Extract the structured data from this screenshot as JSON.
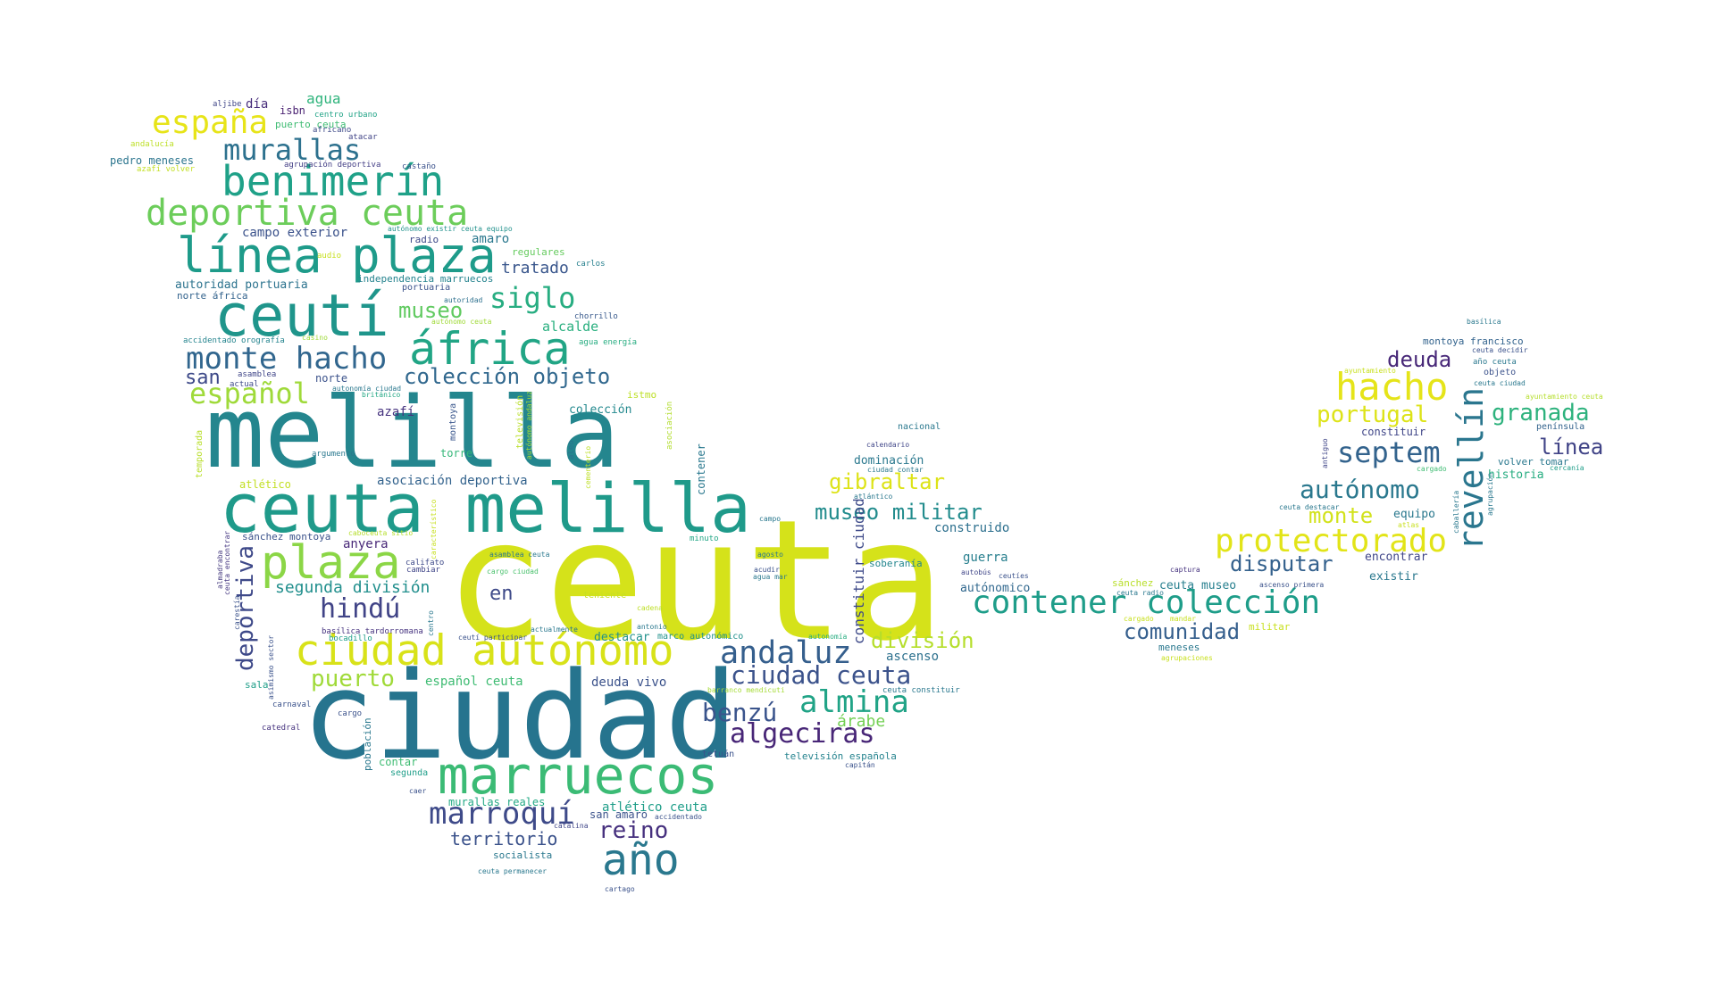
{
  "words": [
    {
      "text": "ceuta",
      "color": "#d5e21a"
    },
    {
      "text": "ciudad",
      "color": "#26748e"
    },
    {
      "text": "melilla",
      "color": "#24868e"
    },
    {
      "text": "ceuta melilla",
      "color": "#1f9a8a"
    },
    {
      "text": "marruecos",
      "color": "#3bbb75"
    },
    {
      "text": "ciudad autónomo",
      "color": "#d8e219"
    },
    {
      "text": "ceutí",
      "color": "#1f958b"
    },
    {
      "text": "línea plaza",
      "color": "#1e9b8a"
    },
    {
      "text": "áfrica",
      "color": "#21a585"
    },
    {
      "text": "plaza",
      "color": "#8bd646"
    },
    {
      "text": "año",
      "color": "#2a788e"
    },
    {
      "text": "benimerín",
      "color": "#1fa188"
    },
    {
      "text": "deportiva ceuta",
      "color": "#6ccd5a"
    },
    {
      "text": "contener colección",
      "color": "#1e9d89"
    },
    {
      "text": "revellín",
      "color": "#2a768e"
    },
    {
      "text": "hacho",
      "color": "#e5e419"
    },
    {
      "text": "protectorado",
      "color": "#e2e418"
    },
    {
      "text": "monte hacho",
      "color": "#31668e"
    },
    {
      "text": "españa",
      "color": "#e7e419"
    },
    {
      "text": "murallas",
      "color": "#2d718e"
    },
    {
      "text": "marroquí",
      "color": "#3e4a89"
    },
    {
      "text": "almina",
      "color": "#20a386"
    },
    {
      "text": "andaluz",
      "color": "#355f8d"
    },
    {
      "text": "hindú",
      "color": "#414487"
    },
    {
      "text": "español",
      "color": "#9fda3a"
    },
    {
      "text": "siglo",
      "color": "#27ad81"
    },
    {
      "text": "septem",
      "color": "#33638d"
    },
    {
      "text": "ciudad ceuta",
      "color": "#3b528b"
    },
    {
      "text": "algeciras",
      "color": "#482677"
    },
    {
      "text": "autónomo",
      "color": "#2a788e"
    },
    {
      "text": "deportiva",
      "color": "#3e4989"
    },
    {
      "text": "benzú",
      "color": "#3a548c"
    },
    {
      "text": "división",
      "color": "#b5de2b"
    },
    {
      "text": "colección objeto",
      "color": "#31688e"
    },
    {
      "text": "museo militar",
      "color": "#228c8d"
    },
    {
      "text": "portugal",
      "color": "#dde318"
    },
    {
      "text": "granada",
      "color": "#2db27d"
    },
    {
      "text": "gibraltar",
      "color": "#dde318"
    },
    {
      "text": "comunidad",
      "color": "#355f8d"
    },
    {
      "text": "puerto",
      "color": "#a0da39"
    },
    {
      "text": "reino",
      "color": "#46307e"
    },
    {
      "text": "monte",
      "color": "#d2e21b"
    },
    {
      "text": "disputar",
      "color": "#34618d"
    },
    {
      "text": "deuda",
      "color": "#482878"
    },
    {
      "text": "línea",
      "color": "#414487"
    },
    {
      "text": "museo",
      "color": "#60ca60"
    },
    {
      "text": "territorio",
      "color": "#3b528b"
    },
    {
      "text": "en",
      "color": "#3e4a89"
    },
    {
      "text": "san",
      "color": "#3e4a89"
    },
    {
      "text": "segunda división",
      "color": "#218f8d"
    },
    {
      "text": "árabe",
      "color": "#74d055"
    },
    {
      "text": "tratado",
      "color": "#39568c"
    },
    {
      "text": "constituir ciudad",
      "color": "#3e4a89"
    },
    {
      "text": "agua",
      "color": "#2fb47c"
    },
    {
      "text": "día",
      "color": "#472d7b"
    },
    {
      "text": "isbn",
      "color": "#481f70"
    },
    {
      "text": "centro urbano",
      "color": "#20a386"
    },
    {
      "text": "aljibe",
      "color": "#404688"
    },
    {
      "text": "puerto ceuta",
      "color": "#3fbc73"
    },
    {
      "text": "africano",
      "color": "#3e4a89"
    },
    {
      "text": "atacar",
      "color": "#414487"
    },
    {
      "text": "andalucía",
      "color": "#bddf26"
    },
    {
      "text": "pedro meneses",
      "color": "#2b758e"
    },
    {
      "text": "agrupación deportiva",
      "color": "#433e85"
    },
    {
      "text": "castaño",
      "color": "#3b528b"
    },
    {
      "text": "azafí volver",
      "color": "#c2df23"
    },
    {
      "text": "campo exterior",
      "color": "#3b528b"
    },
    {
      "text": "autónomo existir ceuta equipo",
      "color": "#21918c"
    },
    {
      "text": "amaro",
      "color": "#2a788e"
    },
    {
      "text": "radio",
      "color": "#3e4a89"
    },
    {
      "text": "regulares",
      "color": "#65cb5e"
    },
    {
      "text": "audio",
      "color": "#c8e020"
    },
    {
      "text": "carlos",
      "color": "#27808e"
    },
    {
      "text": "independencia marruecos",
      "color": "#25838e"
    },
    {
      "text": "autoridad portuaria",
      "color": "#2c738e"
    },
    {
      "text": "norte áfrica",
      "color": "#33638d"
    },
    {
      "text": "portuaria",
      "color": "#3b528b"
    },
    {
      "text": "autoridad",
      "color": "#2d708e"
    },
    {
      "text": "autónomo ceuta",
      "color": "#a0da39"
    },
    {
      "text": "chorrillo",
      "color": "#38598c"
    },
    {
      "text": "alcalde",
      "color": "#29af7f"
    },
    {
      "text": "casino",
      "color": "#9fda3a"
    },
    {
      "text": "accidentado orografía",
      "color": "#25848e"
    },
    {
      "text": "agua energía",
      "color": "#27ad81"
    },
    {
      "text": "asamblea",
      "color": "#404688"
    },
    {
      "text": "actual",
      "color": "#3e4a89"
    },
    {
      "text": "norte",
      "color": "#3b528b"
    },
    {
      "text": "autonomía ciudad",
      "color": "#2a788e"
    },
    {
      "text": "británico",
      "color": "#22a884"
    },
    {
      "text": "istmo",
      "color": "#bddf26"
    },
    {
      "text": "azafí",
      "color": "#46337f"
    },
    {
      "text": "montoya",
      "color": "#39568c"
    },
    {
      "text": "colección",
      "color": "#23898e"
    },
    {
      "text": "televisión",
      "color": "#b8de29"
    },
    {
      "text": "autónomo andaluz",
      "color": "#a5db36"
    },
    {
      "text": "argumento",
      "color": "#2a788e"
    },
    {
      "text": "torre",
      "color": "#35b779"
    },
    {
      "text": "aleo",
      "color": "#2c728e"
    },
    {
      "text": "asociación",
      "color": "#b2dd2d"
    },
    {
      "text": "cementerio",
      "color": "#bddf26"
    },
    {
      "text": "contener",
      "color": "#2a788e"
    },
    {
      "text": "temporada",
      "color": "#b8de29"
    },
    {
      "text": "atlético",
      "color": "#c2df23"
    },
    {
      "text": "asociación deportiva",
      "color": "#33638d"
    },
    {
      "text": "caboceuta sitio",
      "color": "#b5de2b"
    },
    {
      "text": "característico",
      "color": "#c8e020"
    },
    {
      "text": "sánchez montoya",
      "color": "#3b528b"
    },
    {
      "text": "anyera",
      "color": "#482878"
    },
    {
      "text": "almadraba",
      "color": "#44397f"
    },
    {
      "text": "ceuta encontrar",
      "color": "#453781"
    },
    {
      "text": "califato",
      "color": "#3e4a89"
    },
    {
      "text": "cambiar",
      "color": "#404688"
    },
    {
      "text": "asamblea ceuta",
      "color": "#2a788e"
    },
    {
      "text": "cargo ciudad",
      "color": "#4ac16d"
    },
    {
      "text": "minuto",
      "color": "#21a685"
    },
    {
      "text": "agosto",
      "color": "#2a788e"
    },
    {
      "text": "acudir",
      "color": "#3b528b"
    },
    {
      "text": "agua mar",
      "color": "#2a788e"
    },
    {
      "text": "campo",
      "color": "#2a788e"
    },
    {
      "text": "construido",
      "color": "#2d708e"
    },
    {
      "text": "guerra",
      "color": "#277f8e"
    },
    {
      "text": "soberanía",
      "color": "#24868e"
    },
    {
      "text": "autónomico",
      "color": "#31688e"
    },
    {
      "text": "autobús",
      "color": "#404688"
    },
    {
      "text": "ceutíes",
      "color": "#3b528b"
    },
    {
      "text": "ascenso",
      "color": "#2d718e"
    },
    {
      "text": "nacional",
      "color": "#2a788e"
    },
    {
      "text": "calendario",
      "color": "#404688"
    },
    {
      "text": "dominación",
      "color": "#2a788e"
    },
    {
      "text": "ciudad contar",
      "color": "#2a788e"
    },
    {
      "text": "atlántico",
      "color": "#2a788e"
    },
    {
      "text": "teniente",
      "color": "#c8e020"
    },
    {
      "text": "cadena",
      "color": "#bddf26"
    },
    {
      "text": "antonio",
      "color": "#2a788e"
    },
    {
      "text": "carestía",
      "color": "#3b528b"
    },
    {
      "text": "basílica tardorromana",
      "color": "#46337f"
    },
    {
      "text": "bocadillo",
      "color": "#1f9e89"
    },
    {
      "text": "centro",
      "color": "#2a788e"
    },
    {
      "text": "ceutí participar",
      "color": "#3b528b"
    },
    {
      "text": "actualmente",
      "color": "#2a788e"
    },
    {
      "text": "destacar",
      "color": "#21918c"
    },
    {
      "text": "marco autonómico",
      "color": "#21918c"
    },
    {
      "text": "autonomía",
      "color": "#27ad81"
    },
    {
      "text": "asimismo sector",
      "color": "#3b528b"
    },
    {
      "text": "sala",
      "color": "#1f9e89"
    },
    {
      "text": "español ceuta",
      "color": "#3fbc73"
    },
    {
      "text": "deuda vivo",
      "color": "#3b528b"
    },
    {
      "text": "barranco mendicuti",
      "color": "#a5db36"
    },
    {
      "text": "ceuta constituir",
      "color": "#2a788e"
    },
    {
      "text": "carnaval",
      "color": "#3b528b"
    },
    {
      "text": "cargo",
      "color": "#3b528b"
    },
    {
      "text": "catedral",
      "color": "#46337f"
    },
    {
      "text": "población",
      "color": "#2a788e"
    },
    {
      "text": "contar",
      "color": "#3fbc73"
    },
    {
      "text": "segunda",
      "color": "#1f9e89"
    },
    {
      "text": "tetuán",
      "color": "#3b528b"
    },
    {
      "text": "televisión española",
      "color": "#25838e"
    },
    {
      "text": "capitán",
      "color": "#3b528b"
    },
    {
      "text": "caer",
      "color": "#3b528b"
    },
    {
      "text": "murallas reales",
      "color": "#22a884"
    },
    {
      "text": "atlético ceuta",
      "color": "#1f9e89"
    },
    {
      "text": "san amaro",
      "color": "#3b528b"
    },
    {
      "text": "accidentado",
      "color": "#3b528b"
    },
    {
      "text": "catalina",
      "color": "#404688"
    },
    {
      "text": "socialista",
      "color": "#2a788e"
    },
    {
      "text": "ceuta permanecer",
      "color": "#2a788e"
    },
    {
      "text": "cartago",
      "color": "#3b528b"
    },
    {
      "text": "sánchez",
      "color": "#b8de29"
    },
    {
      "text": "ceuta radio",
      "color": "#2a788e"
    },
    {
      "text": "ceuta museo",
      "color": "#277f8e"
    },
    {
      "text": "ascenso primera",
      "color": "#3b528b"
    },
    {
      "text": "cargado",
      "color": "#c8e020"
    },
    {
      "text": "mandar",
      "color": "#c8e020"
    },
    {
      "text": "militar",
      "color": "#c8e020"
    },
    {
      "text": "meneses",
      "color": "#2a788e"
    },
    {
      "text": "agrupaciones",
      "color": "#c8e020"
    },
    {
      "text": "captura",
      "color": "#46337f"
    },
    {
      "text": "encontrar",
      "color": "#404688"
    },
    {
      "text": "existir",
      "color": "#2a788e"
    },
    {
      "text": "equipo",
      "color": "#2a788e"
    },
    {
      "text": "constituir",
      "color": "#404688"
    },
    {
      "text": "ceuta destacar",
      "color": "#2a788e"
    },
    {
      "text": "antiguo",
      "color": "#404688"
    },
    {
      "text": "basílica",
      "color": "#2a788e"
    },
    {
      "text": "montoya francisco",
      "color": "#33638d"
    },
    {
      "text": "ceuta decidir",
      "color": "#3b528b"
    },
    {
      "text": "año ceuta",
      "color": "#2a788e"
    },
    {
      "text": "objeto",
      "color": "#3b528b"
    },
    {
      "text": "ayuntamiento",
      "color": "#c8e020"
    },
    {
      "text": "ceuta ciudad",
      "color": "#2a788e"
    },
    {
      "text": "ayuntamiento ceuta",
      "color": "#b5de2b"
    },
    {
      "text": "península",
      "color": "#33638d"
    },
    {
      "text": "volver tomar",
      "color": "#2a788e"
    },
    {
      "text": "historia",
      "color": "#27ad81"
    },
    {
      "text": "cercanía",
      "color": "#1f9e89"
    },
    {
      "text": "cargado",
      "color": "#3fbc73"
    },
    {
      "text": "atlas",
      "color": "#c8e020"
    },
    {
      "text": "caballería",
      "color": "#2a788e"
    },
    {
      "text": "agrupación",
      "color": "#2a788e"
    }
  ]
}
